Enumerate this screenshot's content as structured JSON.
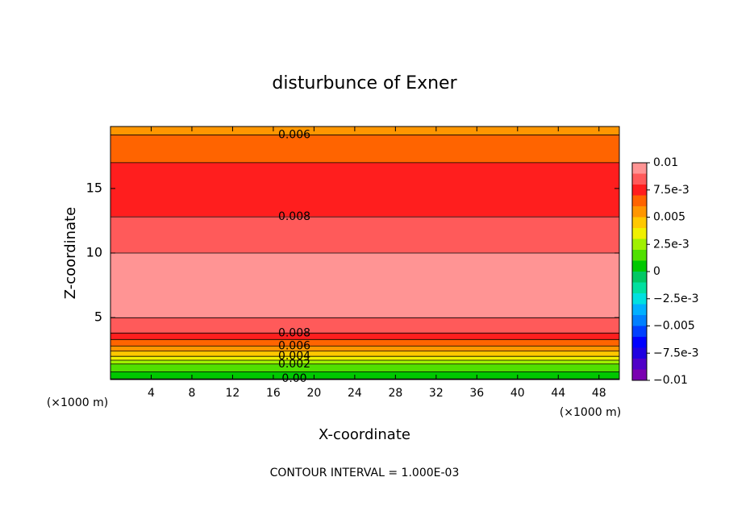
{
  "chart_data": {
    "type": "contour",
    "title": "disturbunce of Exner",
    "xlabel": "X-coordinate",
    "ylabel": "Z-coordinate",
    "x_unit": "(×1000 m)",
    "footer": "CONTOUR INTERVAL = 1.000E-03",
    "xlim": [
      0,
      50
    ],
    "xticks": [
      4,
      8,
      12,
      16,
      20,
      24,
      28,
      32,
      36,
      40,
      44,
      48
    ],
    "ylim": [
      0.2,
      19.8
    ],
    "yticks": [
      5,
      10,
      15
    ],
    "profile": {
      "z": [
        0.2,
        0.8,
        1.4,
        2.0,
        2.8,
        3.8,
        4.6,
        5.5,
        6.5,
        7.5,
        8.5,
        10.0,
        12.8,
        15.0,
        17.0,
        18.5,
        19.8
      ],
      "values": [
        -0.0001,
        0.001,
        0.002,
        0.004,
        0.006,
        0.008,
        0.0087,
        0.0094,
        0.0098,
        0.0099,
        0.0097,
        0.009,
        0.008,
        0.0076,
        0.007,
        0.0062,
        0.0058
      ]
    },
    "levels": [
      -0.01,
      -0.009,
      -0.008,
      -0.007,
      -0.006,
      -0.005,
      -0.004,
      -0.003,
      -0.002,
      -0.001,
      0,
      0.001,
      0.002,
      0.003,
      0.004,
      0.005,
      0.006,
      0.007,
      0.008,
      0.009,
      0.01
    ],
    "colors": [
      "#7a00b0",
      "#5000c8",
      "#2000e0",
      "#0000ff",
      "#0040ff",
      "#0080ff",
      "#00b0ff",
      "#00e0e0",
      "#00e0a0",
      "#00c864",
      "#00c800",
      "#50e000",
      "#a0f000",
      "#f0f000",
      "#ffc800",
      "#ff9600",
      "#ff6400",
      "#ff1e1e",
      "#ff5a5a",
      "#ff9494"
    ],
    "colorbar_ticks": [
      {
        "value": 0.01,
        "label": "0.01"
      },
      {
        "value": 0.0075,
        "label": "7.5e-3"
      },
      {
        "value": 0.005,
        "label": "0.005"
      },
      {
        "value": 0.0025,
        "label": "2.5e-3"
      },
      0,
      {
        "value": -0.0025,
        "label": "−2.5e-3"
      },
      {
        "value": -0.005,
        "label": "−0.005"
      },
      {
        "value": -0.0075,
        "label": "−7.5e-3"
      },
      {
        "value": -0.01,
        "label": "−0.01"
      }
    ],
    "contour_labels": [
      {
        "value": 0,
        "label": "0.00"
      },
      {
        "value": 0.002,
        "label": "0.002"
      },
      {
        "value": 0.004,
        "label": "0.004"
      },
      {
        "value": 0.006,
        "label": "0.006"
      },
      {
        "value": 0.008,
        "label": "0.008"
      },
      {
        "value": 0.008,
        "label": "0.008"
      },
      {
        "value": 0.006,
        "label": "0.006"
      }
    ]
  }
}
